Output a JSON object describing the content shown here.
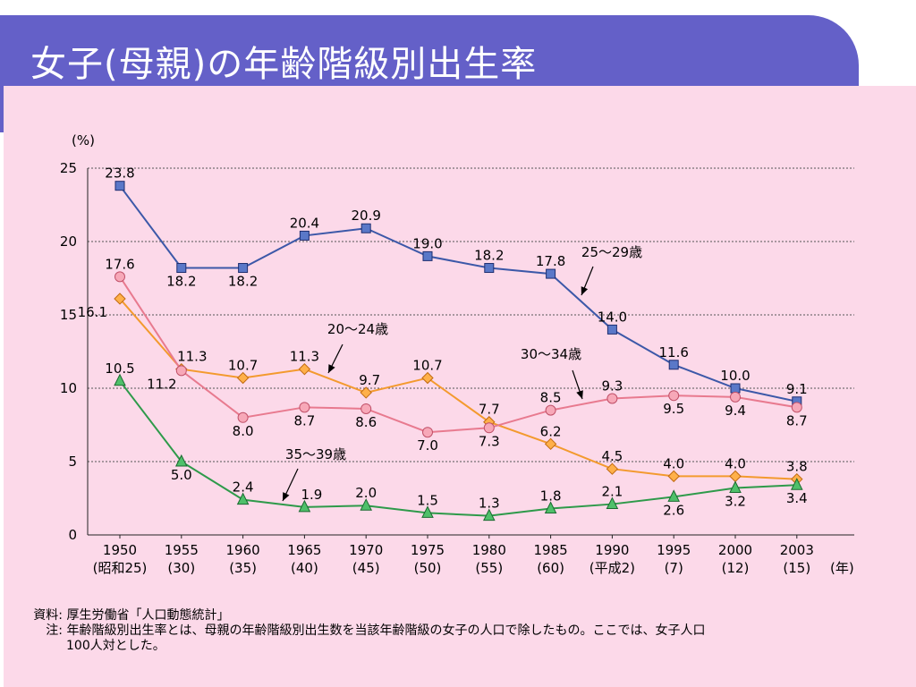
{
  "slide_title": "女子(母親)の年齢階級別出生率",
  "notes": {
    "source_key": "資料:",
    "source_text": "厚生労働省「人口動態統計」",
    "note_key": "注:",
    "note_text": "年齢階級別出生率とは、母親の年齢階級別出生数を当該年齢階級の女子の人口で除したもの。ここでは、女子人口",
    "note_text_cont": "100人対とした。"
  },
  "chart_data": {
    "type": "line",
    "title": "",
    "ylabel": "(%)",
    "xlabel": "(年)",
    "ylim": [
      0,
      25
    ],
    "yticks": [
      0,
      5,
      10,
      15,
      20,
      25
    ],
    "grid": "horizontal dotted",
    "x": [
      "1950",
      "1955",
      "1960",
      "1965",
      "1970",
      "1975",
      "1980",
      "1985",
      "1990",
      "1995",
      "2000",
      "2003"
    ],
    "x_sublabels": [
      "(昭和25)",
      "(30)",
      "(35)",
      "(40)",
      "(45)",
      "(50)",
      "(55)",
      "(60)",
      "(平成2)",
      "(7)",
      "(12)",
      "(15)"
    ],
    "series": [
      {
        "name": "25〜29歳",
        "color": "#3c58a8",
        "marker": "square",
        "values": [
          23.8,
          18.2,
          18.2,
          20.4,
          20.9,
          19.0,
          18.2,
          17.8,
          14.0,
          11.6,
          10.0,
          9.1
        ]
      },
      {
        "name": "20〜24歳",
        "color": "#f39a2e",
        "marker": "diamond",
        "values": [
          16.1,
          11.3,
          10.7,
          11.3,
          9.7,
          10.7,
          7.7,
          6.2,
          4.5,
          4.0,
          4.0,
          3.8
        ]
      },
      {
        "name": "30〜34歳",
        "color": "#e87a8f",
        "marker": "circle",
        "values": [
          17.6,
          11.2,
          8.0,
          8.7,
          8.6,
          7.0,
          7.3,
          8.5,
          9.3,
          9.5,
          9.4,
          8.7
        ]
      },
      {
        "name": "35〜39歳",
        "color": "#2e9a4a",
        "marker": "triangle",
        "values": [
          10.5,
          5.0,
          2.4,
          1.9,
          2.0,
          1.5,
          1.3,
          1.8,
          2.1,
          2.6,
          3.2,
          3.4
        ]
      }
    ],
    "data_labels": [
      [
        "23.8",
        "18.2",
        "18.2",
        "20.4",
        "20.9",
        "19.0",
        "18.2",
        "17.8",
        "14.0",
        "11.6",
        "10.0",
        "9.1"
      ],
      [
        "16.1",
        "11.3",
        "10.7",
        "11.3",
        "9.7",
        "10.7",
        "7.7",
        "6.2",
        "4.5",
        "4.0",
        "4.0",
        "3.8"
      ],
      [
        "17.6",
        "11.2",
        "8.0",
        "8.7",
        "8.6",
        "7.0",
        "7.3",
        "8.5",
        "9.3",
        "9.5",
        "9.4",
        "8.7"
      ],
      [
        "10.5",
        "5.0",
        "2.4",
        "1.9",
        "2.0",
        "1.5",
        "1.3",
        "1.8",
        "2.1",
        "2.6",
        "3.2",
        "3.4"
      ]
    ]
  }
}
